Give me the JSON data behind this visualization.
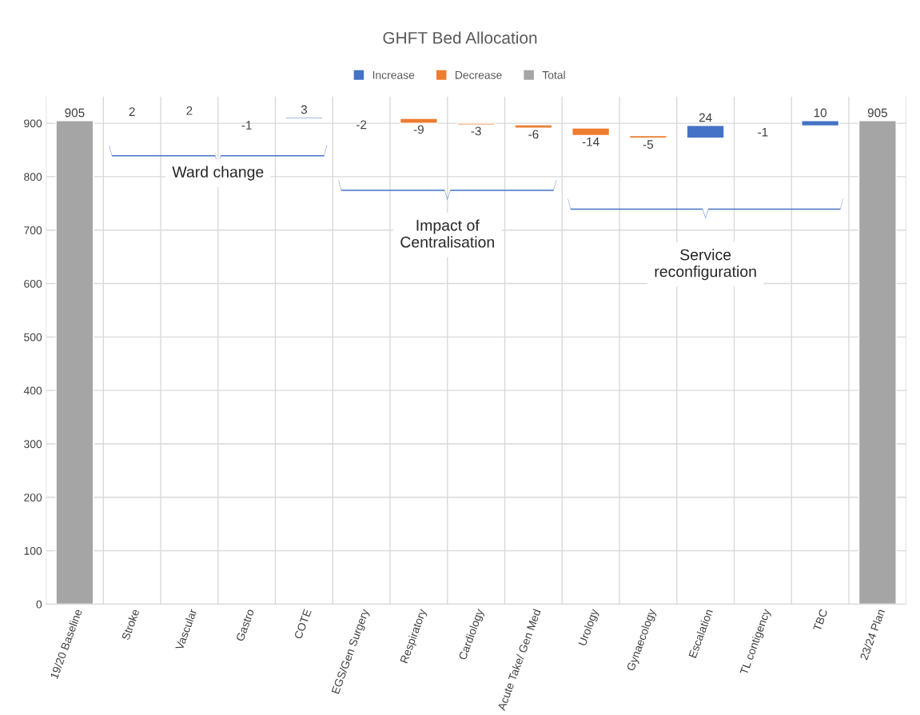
{
  "chart_data": {
    "type": "bar",
    "title": "GHFT Bed Allocation",
    "categories": [
      "19/20 Baseline",
      "Stroke",
      "Vascular",
      "Gastro",
      "COTE",
      "EGS/Gen Surgery",
      "Respiratory",
      "Cardiology",
      "Acute Take/ Gen Med",
      "Urology",
      "Gynaecology",
      "Escalation",
      "TL contigency",
      "TBC",
      "23/24 Plan"
    ],
    "series": [
      {
        "name": "Increase",
        "color": "#4472c4",
        "values": [
          null,
          2,
          2,
          null,
          3,
          null,
          null,
          null,
          null,
          null,
          null,
          24,
          null,
          10,
          null
        ],
        "base": [
          null,
          905,
          907,
          null,
          908,
          null,
          null,
          null,
          null,
          null,
          null,
          872,
          null,
          895,
          null
        ]
      },
      {
        "name": "Decrease",
        "color": "#ed7d31",
        "values": [
          null,
          null,
          null,
          -1,
          null,
          -2,
          -9,
          -3,
          -6,
          -14,
          -5,
          null,
          -1,
          null,
          null
        ],
        "base": [
          null,
          null,
          null,
          909,
          null,
          911,
          909,
          900,
          897,
          891,
          877,
          null,
          896,
          null,
          null
        ]
      },
      {
        "name": "Total",
        "color": "#a5a5a5",
        "values": [
          905,
          null,
          null,
          null,
          null,
          null,
          null,
          null,
          null,
          null,
          null,
          null,
          null,
          null,
          905
        ],
        "base": [
          0,
          null,
          null,
          null,
          null,
          null,
          null,
          null,
          null,
          null,
          null,
          null,
          null,
          null,
          0
        ]
      }
    ],
    "data_labels": true,
    "ylim": [
      0,
      950
    ],
    "yticks": [
      0,
      100,
      200,
      300,
      400,
      500,
      600,
      700,
      800,
      900
    ],
    "grid": true,
    "legend": "top",
    "annotations": [
      "Ward change",
      "Impact of\nCentralisation",
      "Service\nreconfiguration"
    ]
  }
}
